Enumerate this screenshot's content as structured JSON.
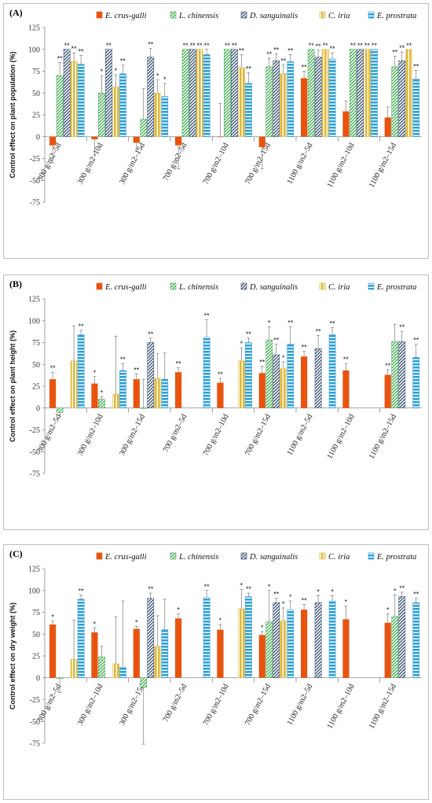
{
  "colors": {
    "E. crus-galli": "#e8540f",
    "L. chinensis": "#3aa84a",
    "D. sanguinalis": "#2f4a6b",
    "C. iria": "#e0b83a",
    "E. prostrata": "#2d9fd8"
  },
  "patterns": {
    "E. crus-galli": "solid",
    "L. chinensis": "diagonal",
    "D. sanguinalis": "diagonal",
    "C. iria": "vertical",
    "E. prostrata": "horizontal"
  },
  "chart_data": [
    {
      "type": "bar",
      "panel_label": "(A)",
      "ylabel": "Control effect on plant population (%)",
      "ylim": [
        -75,
        125
      ],
      "yticks": [
        -75,
        -50,
        -25,
        0,
        25,
        50,
        75,
        100,
        125
      ],
      "legend": [
        "E. crus-galli",
        "L. chinensis",
        "D. sanguinalis",
        "C. iria",
        "E. prostrata"
      ],
      "categories": [
        "300 g/m2–5d",
        "300 g/m2–10d",
        "300 g/m2–15d",
        "700 g/m2–5d",
        "700 g/m2–10d",
        "700 g/m2–15d",
        "1100 g/m2–5d",
        "1100 g/m2–10d",
        "1100 g/m2–15d"
      ],
      "series": [
        {
          "name": "E. crus-galli",
          "values": [
            -10,
            -3,
            -7,
            -10,
            0,
            -12,
            67,
            29,
            22
          ],
          "errors": [
            20,
            18,
            8,
            27,
            38,
            25,
            8,
            12,
            12
          ],
          "sig": [
            "",
            "",
            "",
            "",
            "",
            "",
            "**",
            "",
            ""
          ]
        },
        {
          "name": "L. chinensis",
          "values": [
            70,
            50,
            20,
            100,
            100,
            80,
            100,
            100,
            80
          ],
          "errors": [
            15,
            20,
            35,
            0,
            0,
            10,
            0,
            0,
            12
          ],
          "sig": [
            "**",
            "*",
            "",
            "**",
            "**",
            "**",
            "**",
            "**",
            "**"
          ]
        },
        {
          "name": "D. sanguinalis",
          "values": [
            100,
            100,
            91,
            100,
            100,
            87,
            91,
            100,
            87
          ],
          "errors": [
            0,
            0,
            10,
            0,
            0,
            8,
            8,
            0,
            10
          ],
          "sig": [
            "**",
            "**",
            "**",
            "**",
            "**",
            "**",
            "**",
            "**",
            "**"
          ]
        },
        {
          "name": "C. iria",
          "values": [
            86,
            57,
            50,
            100,
            79,
            72,
            100,
            100,
            100
          ],
          "errors": [
            10,
            14,
            15,
            0,
            15,
            10,
            0,
            0,
            0
          ],
          "sig": [
            "**",
            "*",
            "*",
            "**",
            "**",
            "**",
            "**",
            "**",
            "**"
          ]
        },
        {
          "name": "E. prostrata",
          "values": [
            83,
            72,
            46,
            94,
            61,
            86,
            89,
            100,
            66
          ],
          "errors": [
            10,
            10,
            15,
            6,
            12,
            8,
            7,
            0,
            10
          ],
          "sig": [
            "**",
            "**",
            "*",
            "**",
            "**",
            "**",
            "**",
            "**",
            "**"
          ]
        }
      ]
    },
    {
      "type": "bar",
      "panel_label": "(B)",
      "ylabel": "Control effect on plant height (%)",
      "ylim": [
        -75,
        125
      ],
      "yticks": [
        -75,
        -50,
        -25,
        0,
        25,
        50,
        75,
        100,
        125
      ],
      "legend": [
        "E. crus-galli",
        "L. chinensis",
        "D. sanguinalis",
        "C. iria",
        "E. prostrata"
      ],
      "categories": [
        "300 g/m2–5d",
        "300 g/m2–10d",
        "300 g/m2–15d",
        "700 g/m2–5d",
        "700 g/m2–10d",
        "700 g/m2–15d",
        "1100 g/m2–5d",
        "1100 g/m2–10d",
        "1100 g/m2–15d"
      ],
      "series": [
        {
          "name": "E. crus-galli",
          "values": [
            33,
            28,
            33,
            41,
            29,
            40,
            59,
            43,
            38
          ],
          "errors": [
            8,
            8,
            6,
            5,
            5,
            8,
            6,
            8,
            6
          ],
          "sig": [
            "**",
            "*",
            "**",
            "**",
            "**",
            "**",
            "**",
            "**",
            "**"
          ]
        },
        {
          "name": "L. chinensis",
          "values": [
            -5,
            10,
            0,
            null,
            null,
            78,
            null,
            null,
            76
          ],
          "errors": [
            3,
            3,
            33,
            0,
            0,
            15,
            0,
            0,
            20
          ],
          "sig": [
            "",
            "*",
            "",
            "",
            "",
            "*",
            "",
            "",
            ""
          ]
        },
        {
          "name": "D. sanguinalis",
          "values": [
            null,
            null,
            75,
            null,
            null,
            61,
            68,
            null,
            76
          ],
          "errors": [
            0,
            0,
            5,
            0,
            0,
            12,
            15,
            0,
            12
          ],
          "sig": [
            "",
            "",
            "**",
            "",
            "",
            "**",
            "**",
            "",
            "**"
          ]
        },
        {
          "name": "C. iria",
          "values": [
            54,
            16,
            34,
            null,
            54,
            45,
            null,
            null,
            null
          ],
          "errors": [
            40,
            66,
            28,
            0,
            15,
            8,
            0,
            0,
            0
          ],
          "sig": [
            "",
            "",
            "",
            "",
            "*",
            "*",
            "",
            "",
            ""
          ]
        },
        {
          "name": "E. prostrata",
          "values": [
            84,
            43,
            33,
            81,
            75,
            73,
            84,
            null,
            58
          ],
          "errors": [
            5,
            8,
            30,
            20,
            5,
            20,
            8,
            0,
            15
          ],
          "sig": [
            "**",
            "**",
            "",
            "**",
            "**",
            "**",
            "**",
            "",
            "**"
          ]
        }
      ]
    },
    {
      "type": "bar",
      "panel_label": "(C)",
      "ylabel": "Control effect on dry weight (%)",
      "ylim": [
        -75,
        125
      ],
      "yticks": [
        -75,
        -50,
        -25,
        0,
        25,
        50,
        75,
        100,
        125
      ],
      "legend": [
        "E. crus-galli",
        "L. chinensis",
        "D. sanguinalis",
        "C. iria",
        "E. prostrata"
      ],
      "categories": [
        "300 g/m2–5d",
        "300 g/m2–10d",
        "300 g/m2–15d",
        "700 g/m2–5d",
        "700 g/m2–10d",
        "700 g/m2–15d",
        "1100 g/m2–5d",
        "1100 g/m2–10d",
        "1100 g/m2–15d"
      ],
      "series": [
        {
          "name": "E. crus-galli",
          "values": [
            61,
            52,
            56,
            68,
            55,
            49,
            78,
            67,
            63
          ],
          "errors": [
            4,
            5,
            3,
            5,
            6,
            4,
            6,
            15,
            10
          ],
          "sig": [
            "*",
            "*",
            "*",
            "*",
            "*",
            "*",
            "**",
            "*",
            "*"
          ]
        },
        {
          "name": "L. chinensis",
          "values": [
            -1,
            24,
            -11,
            null,
            null,
            64,
            null,
            null,
            70
          ],
          "errors": [
            16,
            12,
            65,
            0,
            0,
            36,
            0,
            0,
            25
          ],
          "sig": [
            "",
            "",
            "",
            "",
            "",
            "*",
            "",
            "",
            "*"
          ]
        },
        {
          "name": "D. sanguinalis",
          "values": [
            null,
            null,
            91,
            null,
            null,
            86,
            86,
            null,
            93
          ],
          "errors": [
            0,
            0,
            6,
            0,
            0,
            5,
            8,
            0,
            5
          ],
          "sig": [
            "",
            "",
            "**",
            "",
            "",
            "**",
            "*",
            "",
            "**"
          ]
        },
        {
          "name": "C. iria",
          "values": [
            21,
            16,
            36,
            null,
            79,
            65,
            null,
            null,
            null
          ],
          "errors": [
            45,
            54,
            35,
            0,
            22,
            15,
            0,
            0,
            0
          ],
          "sig": [
            "",
            "",
            "",
            "",
            "*",
            "*",
            "",
            "",
            ""
          ]
        },
        {
          "name": "E. prostrata",
          "values": [
            90,
            12,
            55,
            92,
            93,
            78,
            88,
            null,
            86
          ],
          "errors": [
            5,
            76,
            35,
            8,
            4,
            10,
            6,
            0,
            5
          ],
          "sig": [
            "**",
            "",
            "",
            "**",
            "**",
            "*",
            "*",
            "",
            "**"
          ]
        }
      ]
    }
  ]
}
